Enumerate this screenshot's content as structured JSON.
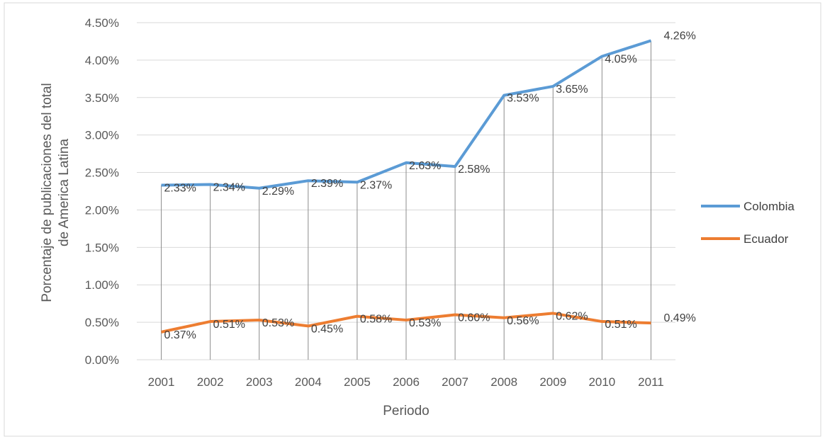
{
  "chart_data": {
    "type": "line",
    "title": "",
    "xlabel": "Periodo",
    "ylabel": "Porcentaje de publicaciones del total de America Latina",
    "x": [
      "2001",
      "2002",
      "2003",
      "2004",
      "2005",
      "2006",
      "2007",
      "2008",
      "2009",
      "2010",
      "2011"
    ],
    "ylim": [
      0,
      4.5
    ],
    "yticks": [
      "0.00%",
      "0.50%",
      "1.00%",
      "1.50%",
      "2.00%",
      "2.50%",
      "3.00%",
      "3.50%",
      "4.00%",
      "4.50%"
    ],
    "grid": true,
    "drop_lines": true,
    "legend_position": "right",
    "series": [
      {
        "name": "Colombia",
        "color": "#5b9bd5",
        "values": [
          2.33,
          2.34,
          2.29,
          2.39,
          2.37,
          2.63,
          2.58,
          3.53,
          3.65,
          4.05,
          4.26
        ],
        "labels": [
          "2.33%",
          "2.34%",
          "2.29%",
          "2.39%",
          "2.37%",
          "2.63%",
          "2.58%",
          "3.53%",
          "3.65%",
          "4.05%",
          "4.26%"
        ]
      },
      {
        "name": "Ecuador",
        "color": "#ed7d31",
        "values": [
          0.37,
          0.51,
          0.53,
          0.45,
          0.58,
          0.53,
          0.6,
          0.56,
          0.62,
          0.51,
          0.49
        ],
        "labels": [
          "0.37%",
          "0.51%",
          "0.53%",
          "0.45%",
          "0.58%",
          "0.53%",
          "0.60%",
          "0.56%",
          "0.62%",
          "0.51%",
          "0.49%"
        ]
      }
    ]
  }
}
